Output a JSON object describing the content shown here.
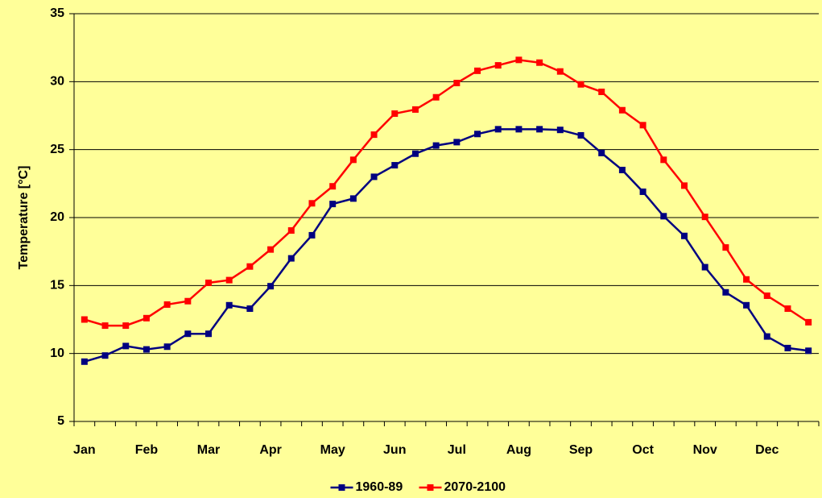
{
  "chart_data": {
    "type": "line",
    "y_label": "Temperature [°C]",
    "categories": [
      "Jan",
      null,
      null,
      "Feb",
      null,
      null,
      "Mar",
      null,
      null,
      "Apr",
      null,
      null,
      "May",
      null,
      null,
      "Jun",
      null,
      null,
      "Jul",
      null,
      null,
      "Aug",
      null,
      null,
      "Sep",
      null,
      null,
      "Oct",
      null,
      null,
      "Nov",
      null,
      null,
      "Dec",
      null,
      null
    ],
    "series": [
      {
        "name": "1960-89",
        "color": "#000080",
        "values": [
          9.4,
          9.85,
          10.55,
          10.3,
          10.5,
          11.45,
          11.45,
          13.55,
          13.3,
          14.95,
          17.0,
          18.7,
          21.0,
          21.4,
          23.0,
          23.85,
          24.7,
          25.3,
          25.55,
          26.15,
          26.5,
          26.5,
          26.5,
          26.45,
          26.05,
          24.75,
          23.5,
          21.9,
          20.1,
          18.65,
          16.35,
          14.5,
          13.55,
          11.25,
          10.4,
          10.2
        ]
      },
      {
        "name": "2070-2100",
        "color": "#ff0000",
        "values": [
          12.5,
          12.05,
          12.05,
          12.6,
          13.6,
          13.85,
          15.2,
          15.4,
          16.4,
          17.65,
          19.05,
          21.05,
          22.3,
          24.25,
          26.1,
          27.65,
          27.95,
          28.85,
          29.9,
          30.8,
          31.2,
          31.6,
          31.4,
          30.75,
          29.8,
          29.25,
          27.9,
          26.8,
          24.25,
          22.35,
          20.05,
          17.8,
          15.45,
          14.25,
          13.3,
          12.3
        ]
      }
    ],
    "ylim": [
      5,
      35
    ],
    "yticks": [
      5,
      10,
      15,
      20,
      25,
      30,
      35
    ],
    "grid": true,
    "legend": "bottom"
  }
}
